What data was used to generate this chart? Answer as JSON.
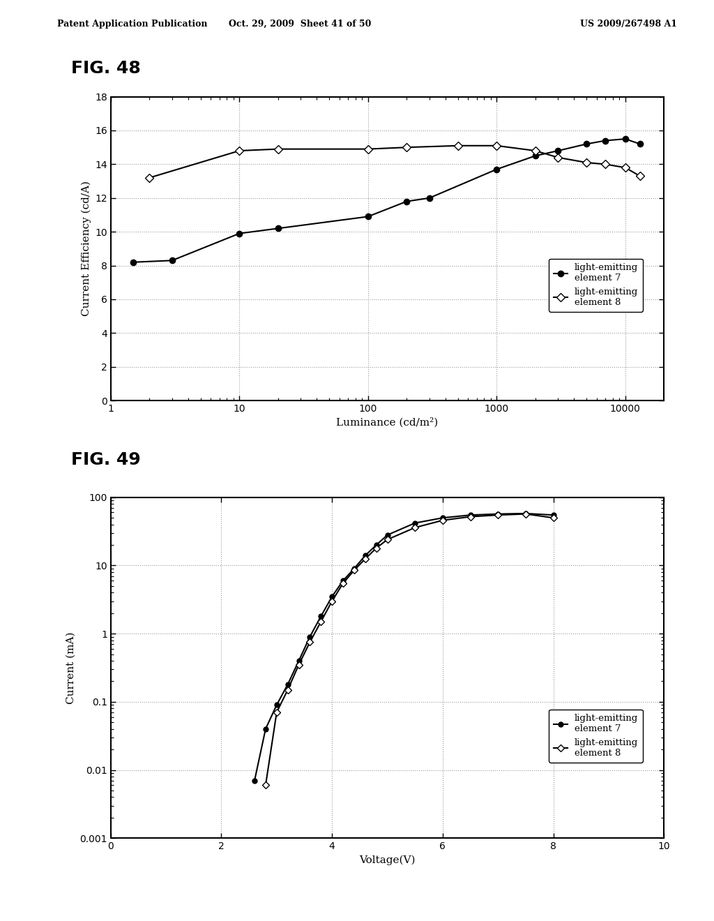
{
  "fig48": {
    "xlabel": "Luminance (cd/m²)",
    "ylabel": "Current Efficiency (cd/A)",
    "ylim": [
      0,
      18
    ],
    "yticks": [
      0,
      2,
      4,
      6,
      8,
      10,
      12,
      14,
      16,
      18
    ],
    "xlim": [
      1,
      20000
    ],
    "elem7_x": [
      1.5,
      3,
      10,
      20,
      100,
      200,
      300,
      1000,
      2000,
      3000,
      5000,
      7000,
      10000,
      13000
    ],
    "elem7_y": [
      8.2,
      8.3,
      9.9,
      10.2,
      10.9,
      11.8,
      12.0,
      13.7,
      14.5,
      14.8,
      15.2,
      15.4,
      15.5,
      15.2
    ],
    "elem8_x": [
      2,
      10,
      20,
      100,
      200,
      500,
      1000,
      2000,
      3000,
      5000,
      7000,
      10000,
      13000
    ],
    "elem8_y": [
      13.2,
      14.8,
      14.9,
      14.9,
      15.0,
      15.1,
      15.1,
      14.8,
      14.4,
      14.1,
      14.0,
      13.8,
      13.3
    ],
    "legend1": "light-emitting\nelement 7",
    "legend2": "light-emitting\nelement 8"
  },
  "fig49": {
    "xlabel": "Voltage(V)",
    "ylabel": "Current (mA)",
    "xlim": [
      0,
      10
    ],
    "xticks": [
      0,
      2,
      4,
      6,
      8,
      10
    ],
    "ylim": [
      0.001,
      100
    ],
    "elem7_x": [
      2.6,
      2.8,
      3.0,
      3.2,
      3.4,
      3.6,
      3.8,
      4.0,
      4.2,
      4.4,
      4.6,
      4.8,
      5.0,
      5.5,
      6.0,
      6.5,
      7.0,
      7.5,
      8.0
    ],
    "elem7_y": [
      0.007,
      0.04,
      0.09,
      0.18,
      0.4,
      0.9,
      1.8,
      3.5,
      6.0,
      9.0,
      14.0,
      20.0,
      28.0,
      42.0,
      50.0,
      55.0,
      57.0,
      58.0,
      55.0
    ],
    "elem8_x": [
      2.8,
      3.0,
      3.2,
      3.4,
      3.6,
      3.8,
      4.0,
      4.2,
      4.4,
      4.6,
      4.8,
      5.0,
      5.5,
      6.0,
      6.5,
      7.0,
      7.5,
      8.0
    ],
    "elem8_y": [
      0.006,
      0.07,
      0.15,
      0.35,
      0.75,
      1.5,
      3.0,
      5.5,
      8.5,
      12.5,
      18.0,
      24.0,
      36.0,
      46.0,
      52.0,
      55.0,
      57.0,
      50.0
    ],
    "legend1": "light-emitting\nelement 7",
    "legend2": "light-emitting\nelement 8"
  },
  "header_left": "Patent Application Publication",
  "header_mid": "Oct. 29, 2009  Sheet 41 of 50",
  "header_right": "US 2009/267498 A1",
  "fig48_label": "FIG. 48",
  "fig49_label": "FIG. 49",
  "bg_color": "#ffffff"
}
